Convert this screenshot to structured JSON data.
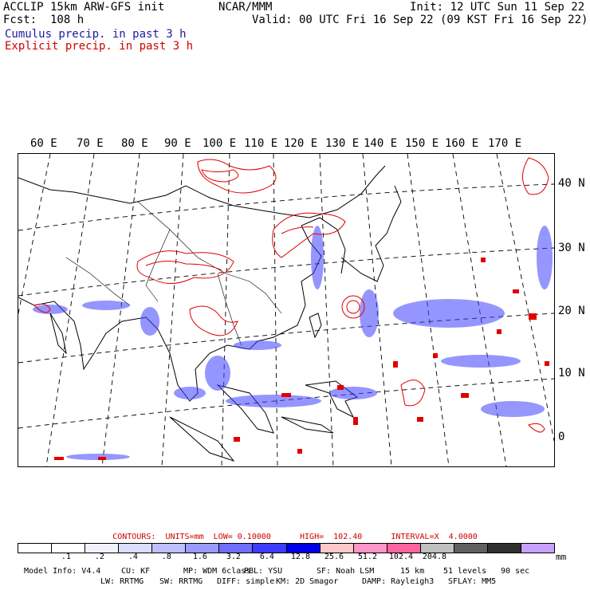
{
  "header": {
    "model": "ACCLIP 15km ARW-GFS init",
    "center": "NCAR/MMM",
    "init": "Init: 12 UTC Sun 11 Sep 22",
    "fcst": "Fcst:  108 h",
    "valid": "Valid: 00 UTC Fri 16 Sep 22 (09 KST Fri 16 Sep 22)",
    "legend_blue": "Cumulus precip. in past 3 h",
    "legend_red": "Explicit precip. in past 3 h"
  },
  "colors": {
    "cumulus": "#1a1aa0",
    "explicit": "#d00000"
  },
  "map": {
    "lon_labels": [
      "60 E",
      "70 E",
      "80 E",
      "90 E",
      "100 E",
      "110 E",
      "120 E",
      "130 E",
      "140 E",
      "150 E",
      "160 E",
      "170 E"
    ],
    "lat_labels": [
      "40 N",
      "30 N",
      "20 N",
      "10 N",
      "0"
    ]
  },
  "contours": {
    "text": "CONTOURS:  UNITS=mm  LOW= 0.10000      HIGH=  102.40      INTERVAL=X  4.0000"
  },
  "colorbar": {
    "colors": [
      "#ffffff",
      "#ffffff",
      "#f2f2ff",
      "#dcdcff",
      "#bfbfff",
      "#9a9aff",
      "#6e6eff",
      "#3c3cff",
      "#0000e6",
      "#ffc8c8",
      "#ff96c8",
      "#ff64a0",
      "#c0c0c0",
      "#606060",
      "#303030",
      "#c8a0ff"
    ],
    "ticks": [
      ".1",
      ".2",
      ".4",
      ".8",
      "1.6",
      "3.2",
      "6.4",
      "12.8",
      "25.6",
      "51.2",
      "102.4",
      "204.8"
    ],
    "unit": "mm"
  },
  "footer": {
    "line1": [
      "Model Info: V4.4",
      "CU: KF",
      "MP: WDM 6class",
      "PBL: YSU",
      "SF: Noah LSM",
      "15 km",
      "51 levels",
      "90 sec"
    ],
    "line2": [
      "LW: RRTMG",
      "SW: RRTMG",
      "DIFF: simple",
      "KM: 2D Smagor",
      "DAMP: Rayleigh3",
      "SFLAY: MM5"
    ]
  }
}
